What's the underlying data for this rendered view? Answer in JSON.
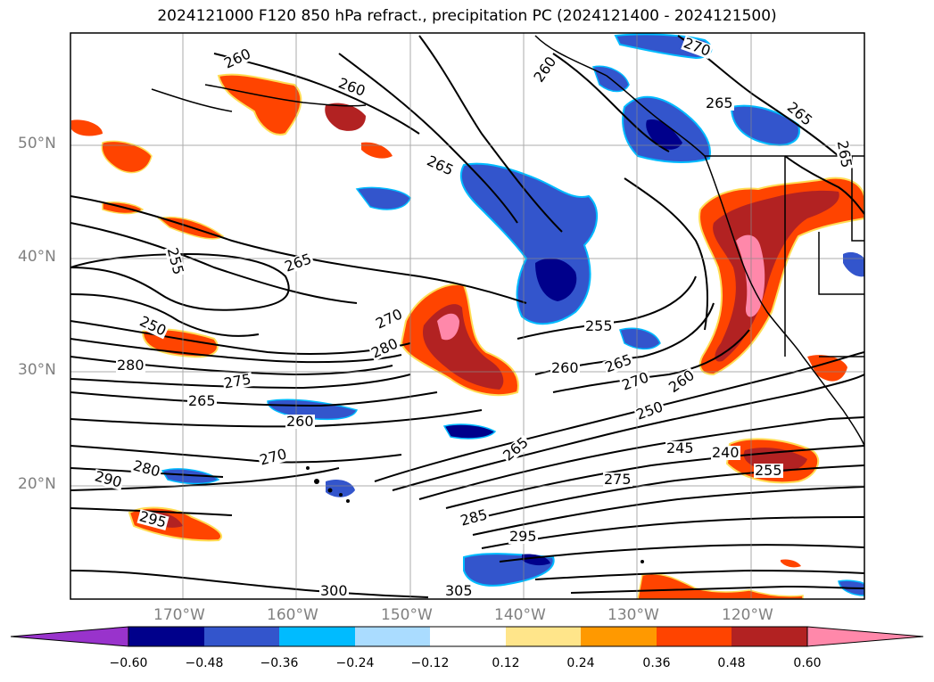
{
  "title": "2024121000 F120 850 hPa refract., precipitation PC (2024121400 - 2024121500)",
  "map": {
    "lat_labels": [
      "50°N",
      "40°N",
      "30°N",
      "20°N"
    ],
    "lon_labels": [
      "170°W",
      "160°W",
      "150°W",
      "140°W",
      "130°W",
      "120°W"
    ],
    "contour_labels": [
      "260",
      "260",
      "265",
      "260",
      "255",
      "250",
      "280",
      "275",
      "265",
      "260",
      "270",
      "280",
      "290",
      "295",
      "265",
      "270",
      "280",
      "285",
      "295",
      "300",
      "305",
      "275",
      "265",
      "255",
      "260",
      "265",
      "270",
      "260",
      "250",
      "245",
      "240",
      "255",
      "265",
      "265",
      "270",
      "265"
    ]
  },
  "colorbar": {
    "ticks": [
      "−0.60",
      "−0.48",
      "−0.36",
      "−0.24",
      "−0.12",
      "0.12",
      "0.24",
      "0.36",
      "0.48",
      "0.60"
    ],
    "colors": [
      "#9933cc",
      "#00008b",
      "#3355cc",
      "#00bbff",
      "#aadcff",
      "#ffffff",
      "#ffe58a",
      "#ff9900",
      "#ff4400",
      "#b22222",
      "#ff88aa"
    ]
  }
}
